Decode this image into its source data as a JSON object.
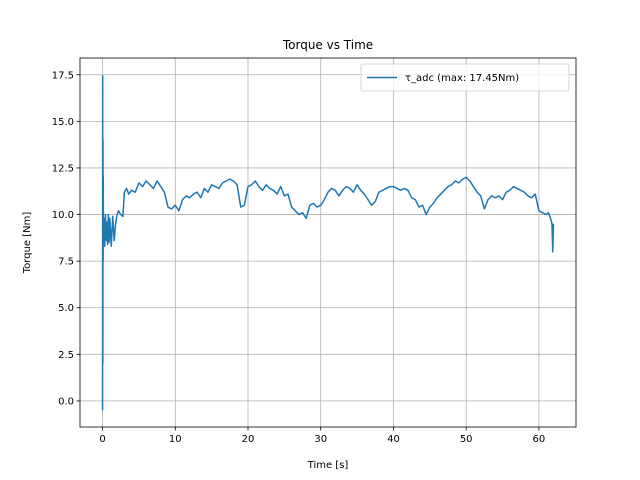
{
  "chart_data": {
    "type": "line",
    "title": "Torque vs Time",
    "xlabel": "Time [s]",
    "ylabel": "Torque [Nm]",
    "xlim": [
      -3.1,
      65.1
    ],
    "ylim": [
      -1.4,
      18.4
    ],
    "grid": true,
    "legend_position": "top-right",
    "x_ticks": [
      0,
      10,
      20,
      30,
      40,
      50,
      60
    ],
    "y_ticks": [
      0.0,
      2.5,
      5.0,
      7.5,
      10.0,
      12.5,
      15.0,
      17.5
    ],
    "x_tick_labels": [
      "0",
      "10",
      "20",
      "30",
      "40",
      "50",
      "60"
    ],
    "y_tick_labels": [
      "0.0",
      "2.5",
      "5.0",
      "7.5",
      "10.0",
      "12.5",
      "15.0",
      "17.5"
    ],
    "series": [
      {
        "name": "τ_adc (max: 17.45Nm)",
        "color": "#1f77b4",
        "x": [
          0,
          0.02,
          0.04,
          0.06,
          0.08,
          0.1,
          0.12,
          0.15,
          0.2,
          0.3,
          0.4,
          0.5,
          0.6,
          0.7,
          0.8,
          0.9,
          1.0,
          1.2,
          1.4,
          1.6,
          1.8,
          2.0,
          2.2,
          2.5,
          2.8,
          3.0,
          3.3,
          3.6,
          4.0,
          4.5,
          5.0,
          5.5,
          6.0,
          6.5,
          7.0,
          7.5,
          8.0,
          8.5,
          9.0,
          9.5,
          10.0,
          10.5,
          11.0,
          11.5,
          12.0,
          12.5,
          13.0,
          13.5,
          14.0,
          14.5,
          15.0,
          15.5,
          16.0,
          16.5,
          17.0,
          17.5,
          18.0,
          18.5,
          19.0,
          19.5,
          20.0,
          20.5,
          21.0,
          21.5,
          22.0,
          22.5,
          23.0,
          23.5,
          24.0,
          24.5,
          25.0,
          25.5,
          26.0,
          26.5,
          27.0,
          27.5,
          28.0,
          28.5,
          29.0,
          29.5,
          30.0,
          30.5,
          31.0,
          31.5,
          32.0,
          32.5,
          33.0,
          33.5,
          34.0,
          34.5,
          35.0,
          35.5,
          36.0,
          36.5,
          37.0,
          37.5,
          38.0,
          38.5,
          39.0,
          39.5,
          40.0,
          40.5,
          41.0,
          41.5,
          42.0,
          42.5,
          43.0,
          43.5,
          44.0,
          44.5,
          45.0,
          45.5,
          46.0,
          46.5,
          47.0,
          47.5,
          48.0,
          48.5,
          49.0,
          49.5,
          50.0,
          50.5,
          51.0,
          51.5,
          52.0,
          52.5,
          53.0,
          53.5,
          54.0,
          54.5,
          55.0,
          55.5,
          56.0,
          56.5,
          57.0,
          57.5,
          58.0,
          58.5,
          59.0,
          59.5,
          60.0,
          60.5,
          61.0,
          61.3,
          61.6,
          61.8,
          61.9,
          62.0
        ],
        "y": [
          -0.5,
          17.45,
          2.0,
          14.0,
          7.5,
          12.0,
          9.0,
          8.5,
          9.8,
          8.3,
          10.0,
          8.6,
          9.6,
          8.4,
          10.0,
          8.5,
          9.8,
          8.3,
          9.9,
          8.6,
          9.5,
          10.0,
          10.2,
          10.0,
          9.9,
          11.2,
          11.4,
          11.1,
          11.3,
          11.2,
          11.7,
          11.5,
          11.8,
          11.6,
          11.4,
          11.8,
          11.5,
          11.2,
          10.4,
          10.3,
          10.5,
          10.2,
          10.8,
          11.0,
          10.9,
          11.1,
          11.2,
          10.9,
          11.4,
          11.2,
          11.6,
          11.5,
          11.4,
          11.7,
          11.8,
          11.9,
          11.8,
          11.6,
          10.4,
          10.5,
          11.5,
          11.6,
          11.8,
          11.5,
          11.3,
          11.6,
          11.4,
          11.3,
          11.1,
          11.5,
          11.0,
          11.1,
          10.4,
          10.2,
          10.0,
          10.1,
          9.8,
          10.5,
          10.6,
          10.4,
          10.5,
          10.8,
          11.2,
          11.4,
          11.3,
          11.0,
          11.3,
          11.5,
          11.4,
          11.2,
          11.6,
          11.3,
          11.1,
          10.8,
          10.5,
          10.7,
          11.2,
          11.3,
          11.4,
          11.5,
          11.5,
          11.4,
          11.3,
          11.4,
          11.3,
          10.9,
          10.8,
          10.4,
          10.5,
          10.0,
          10.4,
          10.6,
          10.9,
          11.1,
          11.3,
          11.5,
          11.6,
          11.8,
          11.7,
          11.9,
          12.0,
          11.8,
          11.5,
          11.2,
          11.0,
          10.3,
          10.8,
          11.0,
          10.9,
          11.0,
          10.8,
          11.2,
          11.3,
          11.5,
          11.4,
          11.3,
          11.2,
          11.0,
          10.9,
          11.1,
          10.2,
          10.1,
          10.0,
          10.1,
          9.8,
          9.5,
          8.0,
          9.5
        ]
      }
    ]
  }
}
